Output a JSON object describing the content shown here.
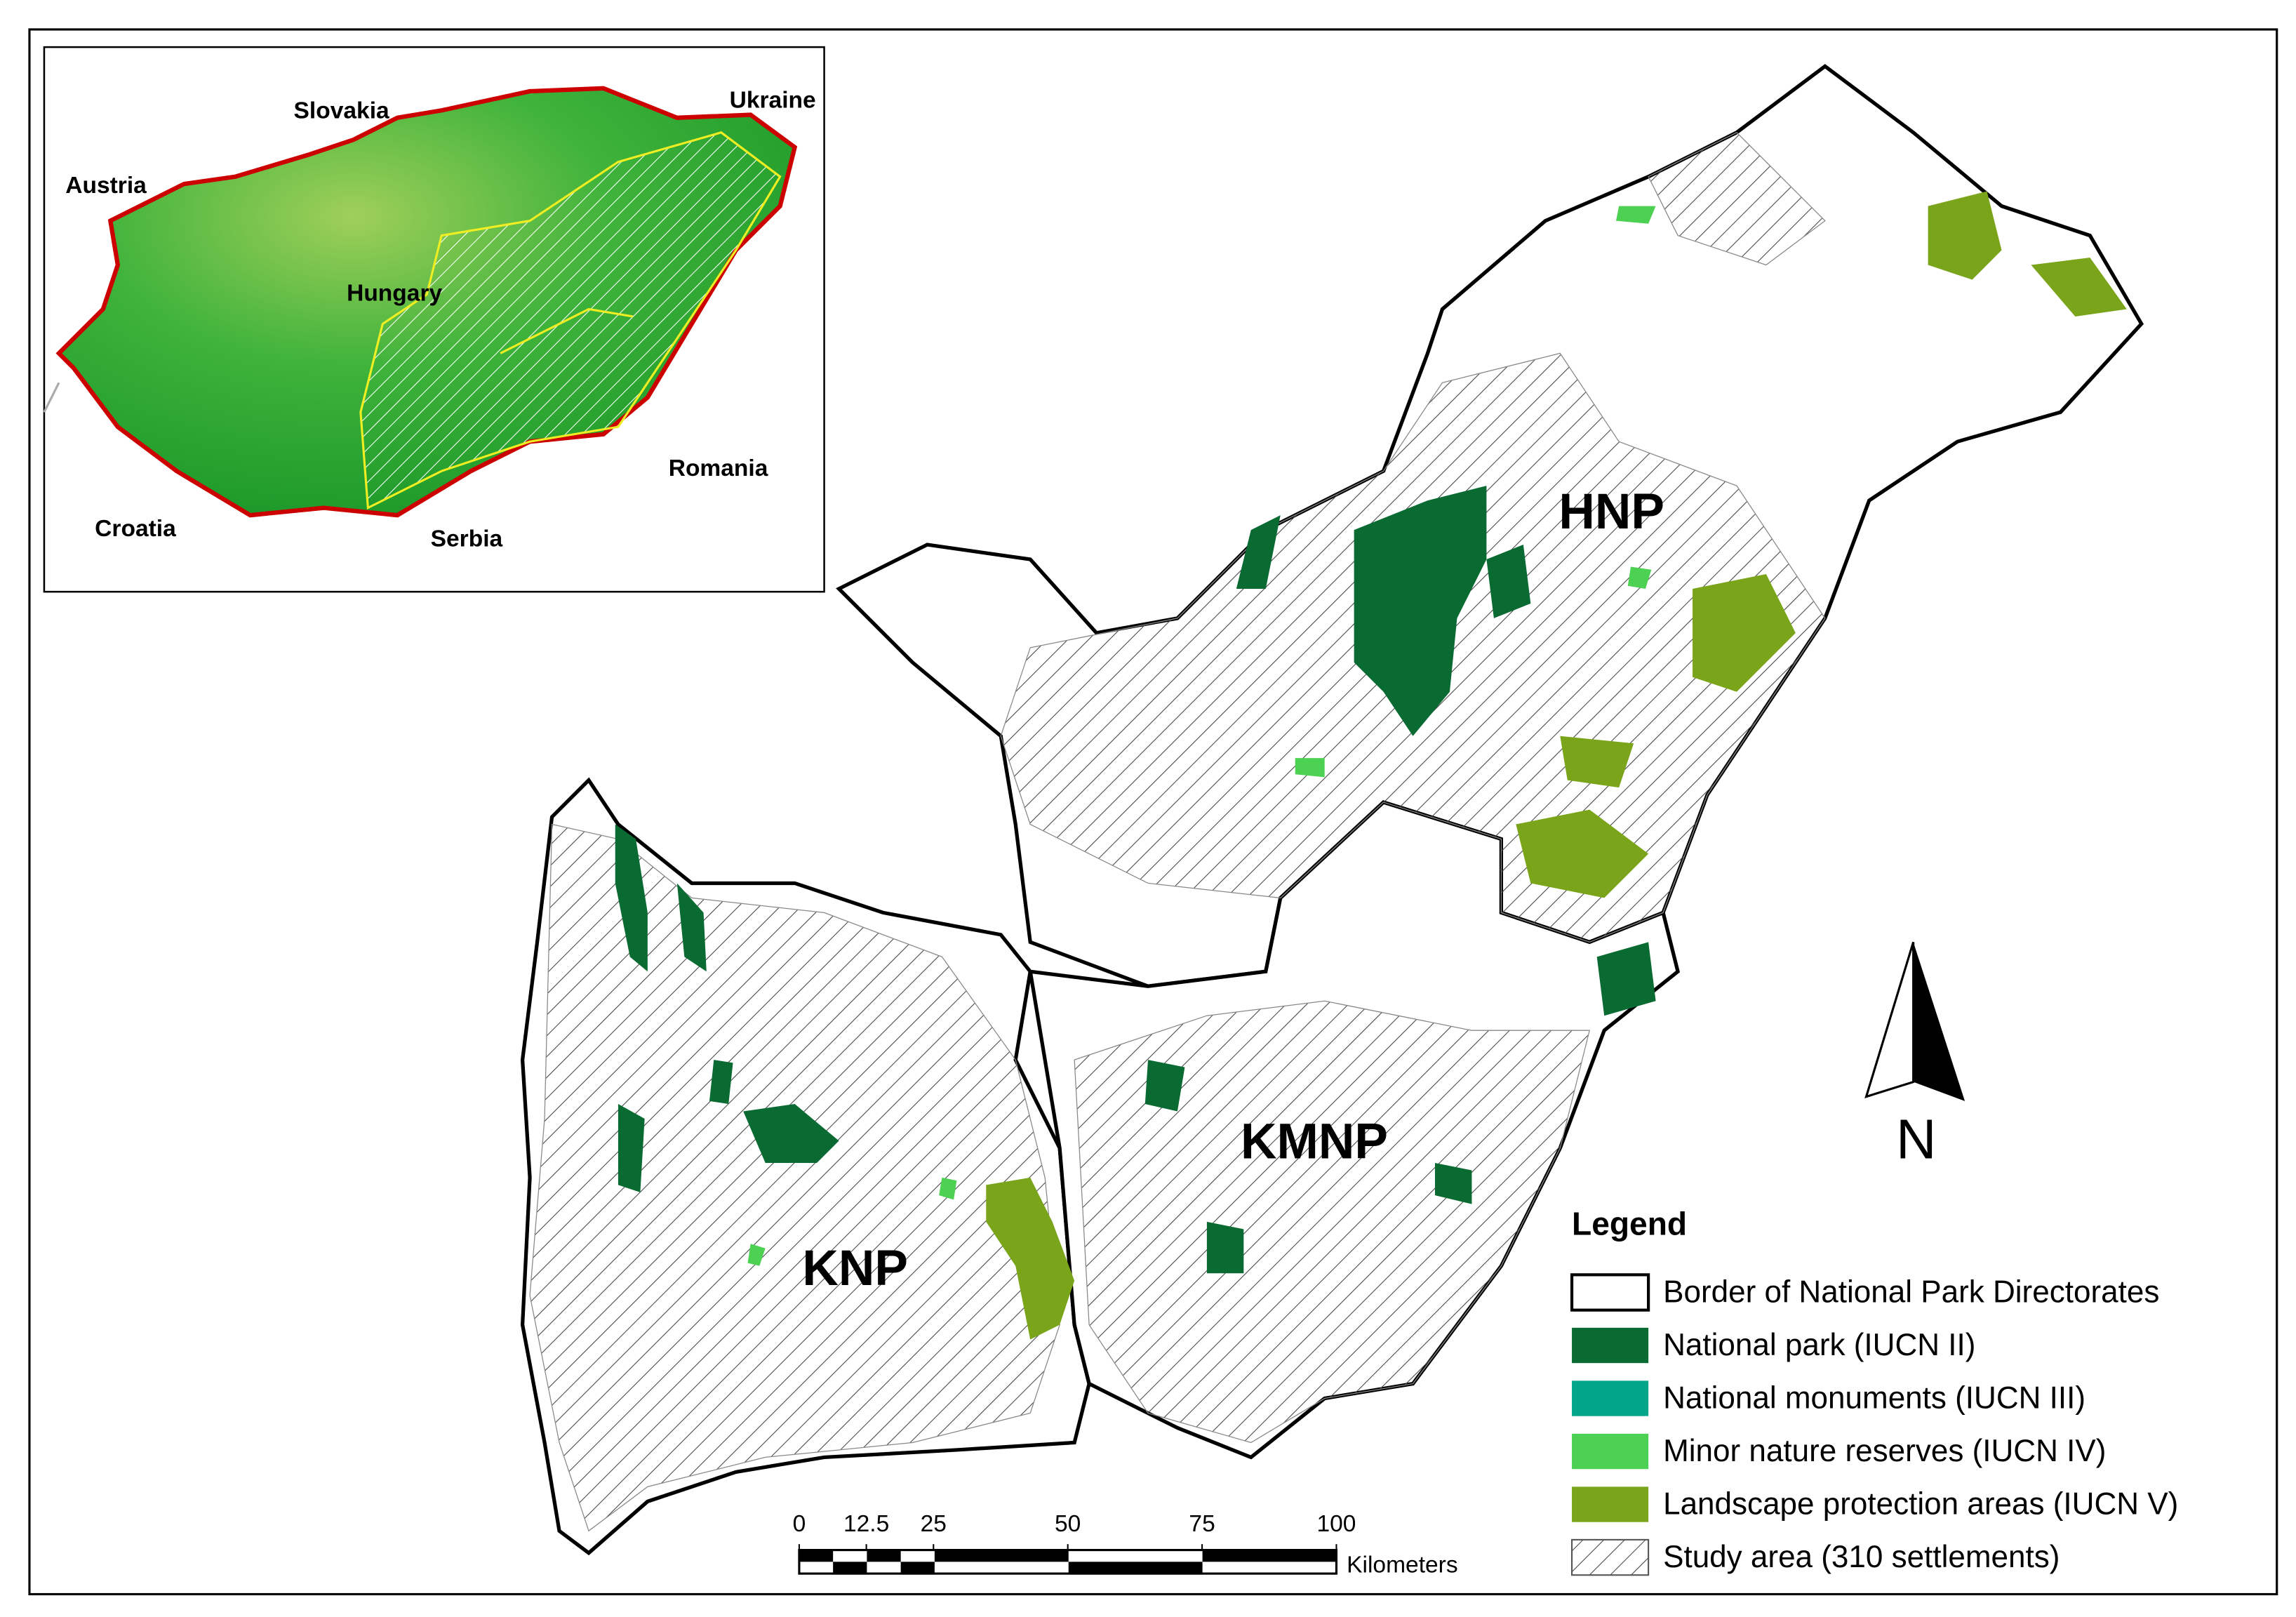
{
  "inset": {
    "labels": [
      "Slovakia",
      "Ukraine",
      "Austria",
      "Hungary",
      "Romania",
      "Croatia",
      "Serbia"
    ]
  },
  "main": {
    "labels": [
      "HNP",
      "KMNP",
      "KNP"
    ],
    "north": "N"
  },
  "legend": {
    "title": "Legend",
    "items": [
      "Border of National Park Directorates",
      "National park (IUCN II)",
      "National monuments (IUCN III)",
      "Minor nature reserves (IUCN IV)",
      "Landscape protection areas (IUCN V)",
      "Study area (310 settlements)"
    ]
  },
  "scale_bar": {
    "ticks": [
      0,
      12.5,
      25,
      50,
      75,
      100
    ],
    "unit": "Kilometers"
  }
}
